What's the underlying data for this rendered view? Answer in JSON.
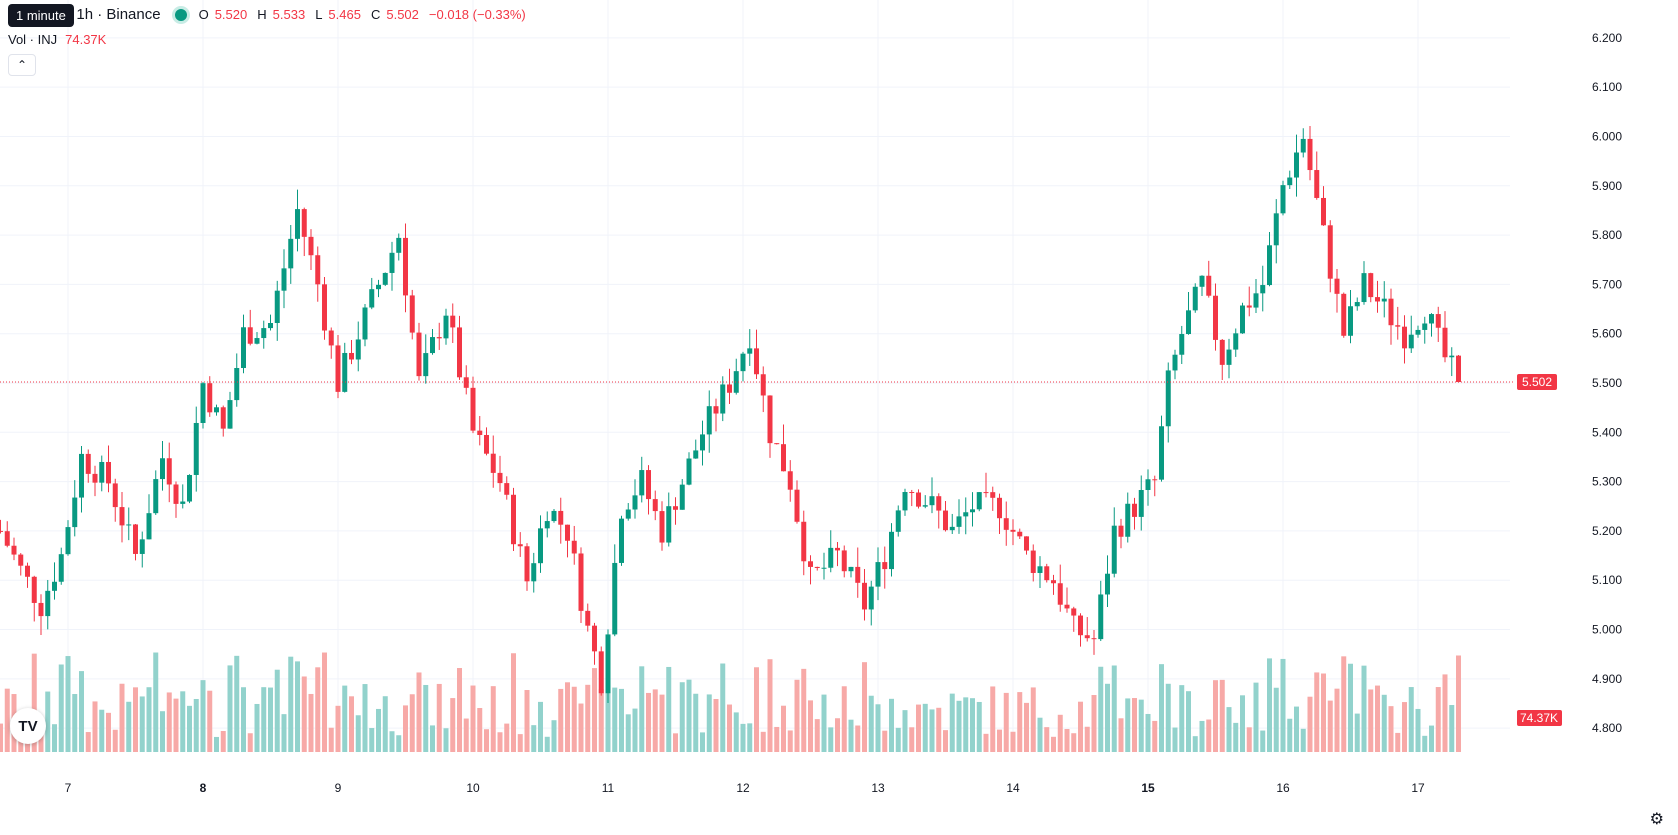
{
  "header": {
    "tooltip": "1 minute",
    "symbol": "etherUS · 1h · Binance",
    "ohlc": [
      {
        "k": "O",
        "v": "5.520"
      },
      {
        "k": "H",
        "v": "5.533"
      },
      {
        "k": "L",
        "v": "5.465"
      },
      {
        "k": "C",
        "v": "5.502"
      }
    ],
    "change": "−0.018 (−0.33%)",
    "vol_label": "Vol · INJ",
    "vol_value": "74.37K",
    "collapse_icon": "chevron-up-icon",
    "logo_text": "TV"
  },
  "colors": {
    "up": "#089981",
    "down": "#f23645",
    "up_vol": "#92d2cc",
    "down_vol": "#f7a9a7",
    "grid": "#f0f3fa"
  },
  "chart_data": {
    "type": "candlestick",
    "interval": "1h",
    "y_ticks": [
      "6.200",
      "6.100",
      "6.000",
      "5.900",
      "5.800",
      "5.700",
      "5.600",
      "5.500",
      "5.400",
      "5.300",
      "5.200",
      "5.100",
      "5.000",
      "4.900",
      "4.800"
    ],
    "ylim": [
      4.78,
      6.22
    ],
    "x_ticks": [
      {
        "label": "7",
        "bold": false,
        "index": 10
      },
      {
        "label": "8",
        "bold": true,
        "index": 30
      },
      {
        "label": "9",
        "bold": false,
        "index": 50
      },
      {
        "label": "10",
        "bold": false,
        "index": 70
      },
      {
        "label": "11",
        "bold": false,
        "index": 90
      },
      {
        "label": "12",
        "bold": false,
        "index": 110
      },
      {
        "label": "13",
        "bold": false,
        "index": 130
      },
      {
        "label": "14",
        "bold": false,
        "index": 150
      },
      {
        "label": "15",
        "bold": true,
        "index": 170
      },
      {
        "label": "16",
        "bold": false,
        "index": 190
      },
      {
        "label": "17",
        "bold": false,
        "index": 210
      }
    ],
    "last_price": "5.502",
    "last_volume": "74.37K",
    "anchor_points": [
      [
        0,
        5.2
      ],
      [
        3,
        5.12
      ],
      [
        6,
        5.05
      ],
      [
        9,
        5.15
      ],
      [
        12,
        5.35
      ],
      [
        16,
        5.3
      ],
      [
        20,
        5.15
      ],
      [
        24,
        5.35
      ],
      [
        27,
        5.25
      ],
      [
        30,
        5.5
      ],
      [
        33,
        5.4
      ],
      [
        36,
        5.6
      ],
      [
        40,
        5.62
      ],
      [
        44,
        5.85
      ],
      [
        47,
        5.7
      ],
      [
        50,
        5.5
      ],
      [
        53,
        5.6
      ],
      [
        56,
        5.7
      ],
      [
        59,
        5.8
      ],
      [
        62,
        5.5
      ],
      [
        66,
        5.65
      ],
      [
        70,
        5.4
      ],
      [
        74,
        5.3
      ],
      [
        78,
        5.1
      ],
      [
        81,
        5.25
      ],
      [
        84,
        5.2
      ],
      [
        87,
        5.0
      ],
      [
        89,
        4.9
      ],
      [
        92,
        5.25
      ],
      [
        95,
        5.3
      ],
      [
        98,
        5.2
      ],
      [
        101,
        5.3
      ],
      [
        104,
        5.4
      ],
      [
        108,
        5.5
      ],
      [
        111,
        5.6
      ],
      [
        114,
        5.4
      ],
      [
        117,
        5.3
      ],
      [
        120,
        5.1
      ],
      [
        124,
        5.15
      ],
      [
        128,
        5.05
      ],
      [
        131,
        5.15
      ],
      [
        134,
        5.3
      ],
      [
        138,
        5.25
      ],
      [
        141,
        5.2
      ],
      [
        144,
        5.25
      ],
      [
        148,
        5.25
      ],
      [
        152,
        5.15
      ],
      [
        156,
        5.1
      ],
      [
        159,
        5.0
      ],
      [
        162,
        4.98
      ],
      [
        165,
        5.2
      ],
      [
        168,
        5.25
      ],
      [
        171,
        5.3
      ],
      [
        173,
        5.5
      ],
      [
        175,
        5.6
      ],
      [
        178,
        5.7
      ],
      [
        181,
        5.55
      ],
      [
        184,
        5.65
      ],
      [
        187,
        5.7
      ],
      [
        190,
        5.9
      ],
      [
        193,
        6.0
      ],
      [
        196,
        5.8
      ],
      [
        199,
        5.6
      ],
      [
        202,
        5.7
      ],
      [
        205,
        5.65
      ],
      [
        208,
        5.6
      ],
      [
        211,
        5.65
      ],
      [
        214,
        5.55
      ],
      [
        216,
        5.502
      ]
    ],
    "volume_range": [
      0,
      190
    ]
  }
}
